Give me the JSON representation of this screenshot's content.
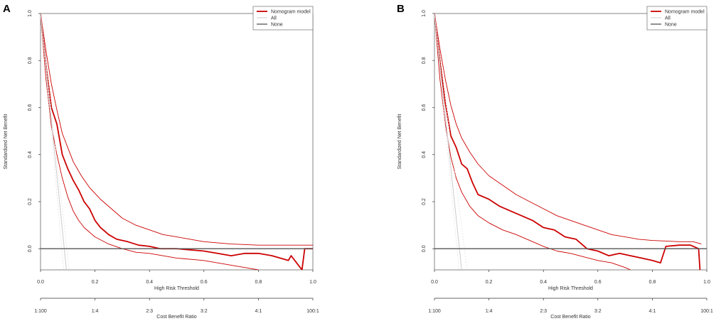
{
  "figure": {
    "panels": [
      {
        "label": "A"
      },
      {
        "label": "B"
      }
    ]
  },
  "chart_data": [
    {
      "type": "line",
      "panel": "A",
      "xlabel": "High Risk Threshold",
      "ylabel": "Standardized Net Benefit",
      "secondary_xlabel": "Cost Benefit Ratio",
      "xlim": [
        0,
        1
      ],
      "ylim": [
        -0.09,
        1.0
      ],
      "x_ticks": [
        "0.0",
        "0.2",
        "0.4",
        "0.6",
        "0.8",
        "1.0"
      ],
      "y_ticks": [
        "0.0",
        "0.2",
        "0.4",
        "0.6",
        "0.8",
        "1.0"
      ],
      "cost_benefit_ticks": [
        "1:100",
        "1:4",
        "2:3",
        "3:2",
        "4:1",
        "100:1"
      ],
      "legend": [
        "Nomogram model",
        "All",
        "None"
      ],
      "legend_position": "top-right",
      "grid": false,
      "series": [
        {
          "name": "Nomogram model",
          "role": "estimate",
          "color": "#cc0000",
          "points": [
            [
              0,
              1.0
            ],
            [
              0.02,
              0.78
            ],
            [
              0.04,
              0.6
            ],
            [
              0.06,
              0.53
            ],
            [
              0.08,
              0.4
            ],
            [
              0.1,
              0.34
            ],
            [
              0.12,
              0.29
            ],
            [
              0.14,
              0.25
            ],
            [
              0.16,
              0.2
            ],
            [
              0.18,
              0.17
            ],
            [
              0.2,
              0.12
            ],
            [
              0.22,
              0.09
            ],
            [
              0.25,
              0.06
            ],
            [
              0.28,
              0.04
            ],
            [
              0.32,
              0.03
            ],
            [
              0.36,
              0.015
            ],
            [
              0.4,
              0.01
            ],
            [
              0.44,
              0.0
            ],
            [
              0.5,
              0.0
            ],
            [
              0.55,
              -0.005
            ],
            [
              0.6,
              -0.01
            ],
            [
              0.65,
              -0.02
            ],
            [
              0.7,
              -0.03
            ],
            [
              0.75,
              -0.02
            ],
            [
              0.8,
              -0.02
            ],
            [
              0.85,
              -0.03
            ],
            [
              0.88,
              -0.04
            ],
            [
              0.91,
              -0.05
            ],
            [
              0.92,
              -0.03
            ],
            [
              0.96,
              -0.09
            ],
            [
              0.97,
              0.0
            ],
            [
              1.0,
              0.0
            ]
          ]
        },
        {
          "name": "Nomogram model upper CI",
          "role": "ci",
          "color": "#cc0000",
          "points": [
            [
              0,
              1.0
            ],
            [
              0.02,
              0.84
            ],
            [
              0.04,
              0.7
            ],
            [
              0.06,
              0.59
            ],
            [
              0.08,
              0.49
            ],
            [
              0.1,
              0.43
            ],
            [
              0.12,
              0.37
            ],
            [
              0.15,
              0.31
            ],
            [
              0.18,
              0.26
            ],
            [
              0.22,
              0.21
            ],
            [
              0.26,
              0.17
            ],
            [
              0.3,
              0.13
            ],
            [
              0.35,
              0.1
            ],
            [
              0.4,
              0.08
            ],
            [
              0.45,
              0.06
            ],
            [
              0.5,
              0.05
            ],
            [
              0.55,
              0.04
            ],
            [
              0.6,
              0.03
            ],
            [
              0.7,
              0.02
            ],
            [
              0.8,
              0.015
            ],
            [
              0.9,
              0.015
            ],
            [
              1.0,
              0.015
            ]
          ]
        },
        {
          "name": "Nomogram model lower CI",
          "role": "ci",
          "color": "#cc0000",
          "points": [
            [
              0,
              1.0
            ],
            [
              0.02,
              0.72
            ],
            [
              0.04,
              0.52
            ],
            [
              0.06,
              0.4
            ],
            [
              0.08,
              0.3
            ],
            [
              0.1,
              0.22
            ],
            [
              0.12,
              0.16
            ],
            [
              0.14,
              0.12
            ],
            [
              0.16,
              0.09
            ],
            [
              0.18,
              0.07
            ],
            [
              0.2,
              0.05
            ],
            [
              0.25,
              0.02
            ],
            [
              0.3,
              0.0
            ],
            [
              0.35,
              -0.015
            ],
            [
              0.4,
              -0.02
            ],
            [
              0.5,
              -0.04
            ],
            [
              0.6,
              -0.05
            ],
            [
              0.7,
              -0.07
            ],
            [
              0.75,
              -0.08
            ],
            [
              0.8,
              -0.09
            ]
          ]
        },
        {
          "name": "All",
          "role": "treat-all",
          "color": "#cccccc",
          "points": [
            [
              0,
              1.0
            ],
            [
              0.095,
              -0.09
            ]
          ]
        },
        {
          "name": "All upper CI",
          "role": "treat-all-ci",
          "color": "#dddddd",
          "points": [
            [
              0,
              1.0
            ],
            [
              0.105,
              -0.09
            ]
          ]
        },
        {
          "name": "All lower CI",
          "role": "treat-all-ci",
          "color": "#dddddd",
          "points": [
            [
              0,
              1.0
            ],
            [
              0.085,
              -0.09
            ]
          ]
        },
        {
          "name": "None",
          "role": "treat-none",
          "color": "#555555",
          "points": [
            [
              0,
              0
            ],
            [
              1,
              0
            ]
          ]
        }
      ]
    },
    {
      "type": "line",
      "panel": "B",
      "xlabel": "High Risk Threshold",
      "ylabel": "Standardized Net Benefit",
      "secondary_xlabel": "Cost Benefit Ratio",
      "xlim": [
        0,
        1
      ],
      "ylim": [
        -0.09,
        1.0
      ],
      "x_ticks": [
        "0.0",
        "0.2",
        "0.4",
        "0.6",
        "0.8",
        "1.0"
      ],
      "y_ticks": [
        "0.0",
        "0.2",
        "0.4",
        "0.6",
        "0.8",
        "1.0"
      ],
      "cost_benefit_ticks": [
        "1:100",
        "1:4",
        "2:3",
        "3:2",
        "4:1",
        "100:1"
      ],
      "legend": [
        "Nomogram model",
        "All",
        "None"
      ],
      "legend_position": "top-right",
      "grid": false,
      "series": [
        {
          "name": "Nomogram model",
          "role": "estimate",
          "color": "#cc0000",
          "points": [
            [
              0,
              1.0
            ],
            [
              0.02,
              0.8
            ],
            [
              0.04,
              0.62
            ],
            [
              0.06,
              0.48
            ],
            [
              0.08,
              0.43
            ],
            [
              0.1,
              0.36
            ],
            [
              0.12,
              0.34
            ],
            [
              0.14,
              0.28
            ],
            [
              0.16,
              0.23
            ],
            [
              0.2,
              0.21
            ],
            [
              0.24,
              0.18
            ],
            [
              0.28,
              0.16
            ],
            [
              0.32,
              0.14
            ],
            [
              0.36,
              0.12
            ],
            [
              0.4,
              0.09
            ],
            [
              0.44,
              0.08
            ],
            [
              0.48,
              0.05
            ],
            [
              0.52,
              0.04
            ],
            [
              0.56,
              0.0
            ],
            [
              0.6,
              -0.01
            ],
            [
              0.64,
              -0.03
            ],
            [
              0.68,
              -0.02
            ],
            [
              0.72,
              -0.03
            ],
            [
              0.76,
              -0.04
            ],
            [
              0.8,
              -0.05
            ],
            [
              0.83,
              -0.06
            ],
            [
              0.85,
              0.01
            ],
            [
              0.9,
              0.015
            ],
            [
              0.94,
              0.015
            ],
            [
              0.97,
              0.0
            ],
            [
              0.975,
              -0.09
            ]
          ]
        },
        {
          "name": "Nomogram model upper CI",
          "role": "ci",
          "color": "#cc0000",
          "points": [
            [
              0,
              1.0
            ],
            [
              0.02,
              0.85
            ],
            [
              0.04,
              0.72
            ],
            [
              0.06,
              0.61
            ],
            [
              0.08,
              0.53
            ],
            [
              0.1,
              0.47
            ],
            [
              0.13,
              0.41
            ],
            [
              0.16,
              0.36
            ],
            [
              0.2,
              0.31
            ],
            [
              0.25,
              0.27
            ],
            [
              0.3,
              0.23
            ],
            [
              0.35,
              0.2
            ],
            [
              0.4,
              0.17
            ],
            [
              0.45,
              0.14
            ],
            [
              0.5,
              0.12
            ],
            [
              0.55,
              0.1
            ],
            [
              0.6,
              0.08
            ],
            [
              0.65,
              0.06
            ],
            [
              0.7,
              0.05
            ],
            [
              0.75,
              0.04
            ],
            [
              0.8,
              0.035
            ],
            [
              0.9,
              0.03
            ],
            [
              0.95,
              0.03
            ],
            [
              0.98,
              0.02
            ]
          ]
        },
        {
          "name": "Nomogram model lower CI",
          "role": "ci",
          "color": "#cc0000",
          "points": [
            [
              0,
              1.0
            ],
            [
              0.02,
              0.72
            ],
            [
              0.04,
              0.53
            ],
            [
              0.06,
              0.39
            ],
            [
              0.08,
              0.3
            ],
            [
              0.1,
              0.24
            ],
            [
              0.13,
              0.18
            ],
            [
              0.16,
              0.14
            ],
            [
              0.2,
              0.11
            ],
            [
              0.25,
              0.08
            ],
            [
              0.3,
              0.06
            ],
            [
              0.35,
              0.035
            ],
            [
              0.4,
              0.01
            ],
            [
              0.45,
              -0.01
            ],
            [
              0.5,
              -0.02
            ],
            [
              0.55,
              -0.035
            ],
            [
              0.6,
              -0.05
            ],
            [
              0.65,
              -0.06
            ],
            [
              0.7,
              -0.08
            ],
            [
              0.72,
              -0.09
            ]
          ]
        },
        {
          "name": "All",
          "role": "treat-all",
          "color": "#cccccc",
          "points": [
            [
              0,
              1.0
            ],
            [
              0.1,
              -0.09
            ]
          ]
        },
        {
          "name": "All upper CI",
          "role": "treat-all-ci",
          "color": "#dddddd",
          "points": [
            [
              0,
              1.0
            ],
            [
              0.12,
              -0.09
            ]
          ]
        },
        {
          "name": "All lower CI",
          "role": "treat-all-ci",
          "color": "#dddddd",
          "points": [
            [
              0,
              1.0
            ],
            [
              0.09,
              -0.09
            ]
          ]
        },
        {
          "name": "None",
          "role": "treat-none",
          "color": "#555555",
          "points": [
            [
              0,
              0
            ],
            [
              1,
              0
            ]
          ]
        }
      ]
    }
  ]
}
